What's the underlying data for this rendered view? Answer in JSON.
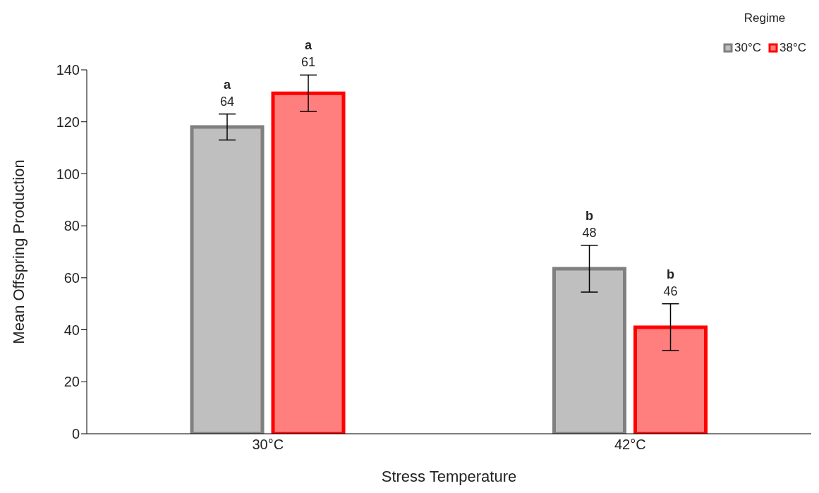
{
  "chart_data": {
    "type": "bar",
    "xlabel": "Stress Temperature",
    "ylabel": "Mean Offspring Production",
    "legend_title": "Regime",
    "legend": "top right",
    "categories": [
      "30°C",
      "42°C"
    ],
    "series": [
      {
        "name": "30°C",
        "color": "#808080",
        "values": [
          118,
          63.5
        ],
        "errors": [
          5,
          9
        ],
        "value_labels": [
          "a\n64",
          "b\n48"
        ]
      },
      {
        "name": "38°C",
        "color": "#ff0000",
        "values": [
          131,
          41
        ],
        "errors": [
          7,
          9
        ],
        "value_labels": [
          "a\n61",
          "b\n46"
        ]
      }
    ],
    "ylim": [
      0,
      140
    ],
    "yticks": [
      0,
      20,
      40,
      60,
      80,
      100,
      120,
      140
    ],
    "grid": false
  }
}
